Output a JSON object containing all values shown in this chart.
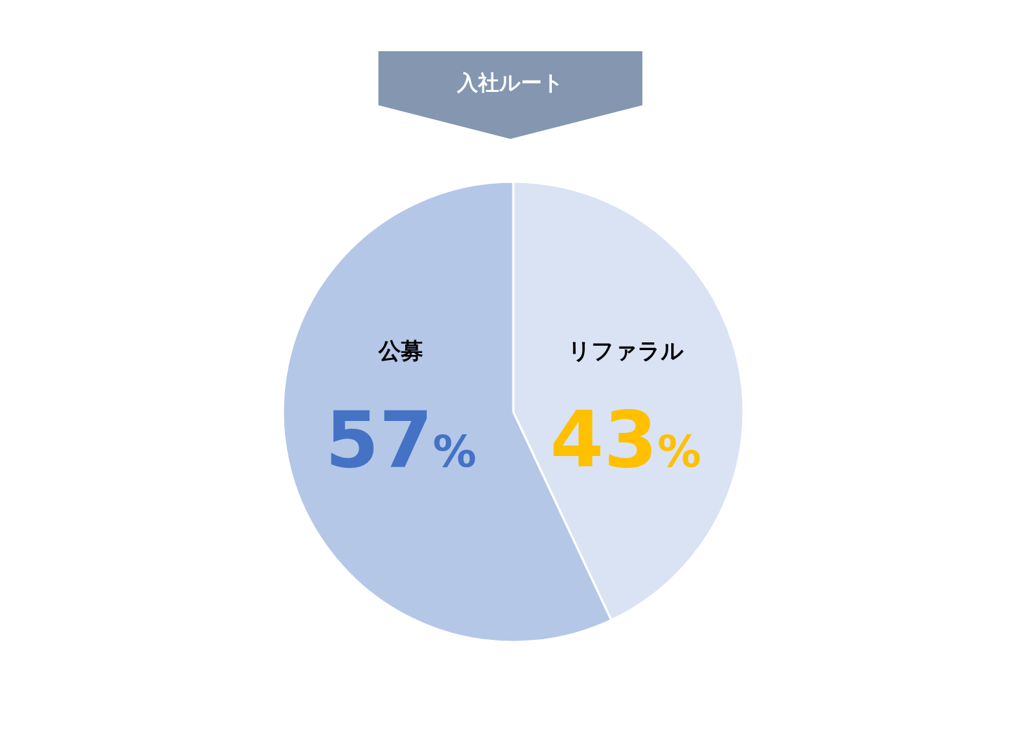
{
  "chart_data": {
    "type": "pie",
    "title": "入社ルート",
    "categories": [
      "リファラル",
      "公募"
    ],
    "values": [
      43,
      57
    ],
    "colors": [
      "#dae3f3",
      "#b4c7e7"
    ],
    "value_labels": [
      "43%",
      "57%"
    ]
  }
}
